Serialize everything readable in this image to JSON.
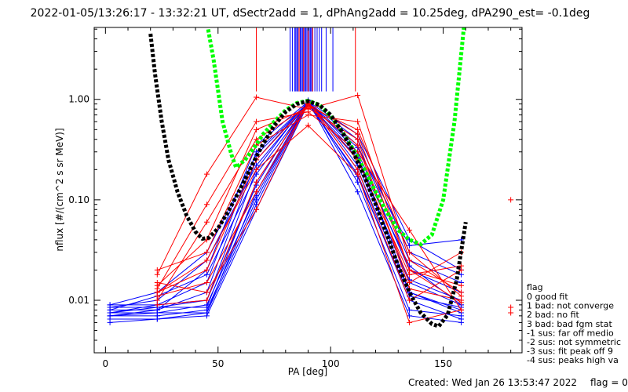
{
  "chart_data": {
    "type": "line",
    "title": "2022-01-05/13:26:17 - 13:32:21 UT, dSectr2add = 1, dPhAng2add = 10.25deg, dPA290_est=  -0.1deg",
    "xlabel": "PA [deg]",
    "ylabel": "nflux [#/(cm^2 s sr MeV)]",
    "xlim": [
      -5,
      185
    ],
    "ylim": [
      0.003,
      5.2
    ],
    "yscale": "log",
    "x_ticks": [
      0,
      50,
      100,
      150
    ],
    "x_tick_labels": [
      "0",
      "50",
      "100",
      "150"
    ],
    "y_ticks": [
      0.01,
      0.1,
      1.0
    ],
    "y_tick_labels": [
      "0.01",
      "0.10",
      "1.00"
    ],
    "pa_bins": [
      2,
      23,
      45,
      67,
      90,
      112,
      135,
      158,
      180
    ],
    "series": [
      {
        "color": "#0000ff",
        "style": "line-with-plus",
        "lines": [
          [
            0.0075,
            0.0075,
            0.0075,
            0.12,
            0.95,
            0.2,
            0.012,
            0.0075
          ],
          [
            0.0085,
            0.0085,
            0.0085,
            0.15,
            0.92,
            0.25,
            0.015,
            0.009
          ],
          [
            0.0065,
            0.0065,
            0.007,
            0.08,
            0.9,
            0.18,
            0.01,
            0.0065
          ],
          [
            0.009,
            0.009,
            0.01,
            0.2,
            0.96,
            0.3,
            0.02,
            0.012
          ],
          [
            0.007,
            0.007,
            0.008,
            0.1,
            0.97,
            0.15,
            0.008,
            0.007
          ],
          [
            0.008,
            0.008,
            0.012,
            0.25,
            0.94,
            0.35,
            0.025,
            0.015
          ],
          [
            0.0075,
            0.009,
            0.015,
            0.3,
            0.93,
            0.4,
            0.03,
            0.018
          ],
          [
            0.007,
            0.008,
            0.02,
            0.35,
            0.95,
            0.45,
            0.04,
            0.02
          ],
          [
            0.0085,
            0.01,
            0.025,
            0.22,
            0.91,
            0.28,
            0.012,
            0.008
          ],
          [
            0.006,
            0.0065,
            0.0075,
            0.09,
            0.96,
            0.12,
            0.007,
            0.006
          ],
          [
            0.009,
            0.012,
            0.03,
            0.28,
            0.92,
            0.33,
            0.035,
            0.04
          ],
          [
            0.0075,
            0.0085,
            0.01,
            0.14,
            0.98,
            0.22,
            0.016,
            0.01
          ],
          [
            0.008,
            0.011,
            0.018,
            0.18,
            0.9,
            0.26,
            0.022,
            0.009
          ],
          [
            0.007,
            0.0075,
            0.009,
            0.11,
            0.95,
            0.17,
            0.011,
            0.0085
          ]
        ]
      },
      {
        "color": "#ff0000",
        "style": "line-with-plus",
        "lines": [
          [
            null,
            0.012,
            0.02,
            0.25,
            0.9,
            0.45,
            0.02,
            0.0095
          ],
          [
            null,
            0.01,
            0.06,
            0.4,
            0.85,
            0.5,
            0.03,
            0.011
          ],
          [
            null,
            0.015,
            0.012,
            0.08,
            0.95,
            0.2,
            0.01,
            0.02
          ],
          [
            null,
            0.013,
            0.09,
            0.6,
            0.75,
            0.3,
            0.05,
            0.008
          ],
          [
            null,
            0.018,
            0.18,
            1.05,
            0.8,
            1.1,
            0.025,
            0.012
          ],
          [
            null,
            0.011,
            0.015,
            0.12,
            0.88,
            0.35,
            0.015,
            0.03
          ],
          [
            null,
            0.02,
            0.03,
            0.35,
            0.7,
            0.6,
            0.02,
            0.014
          ],
          [
            null,
            0.009,
            0.01,
            0.15,
            0.92,
            0.25,
            0.018,
            0.022
          ],
          [
            null,
            0.014,
            0.04,
            0.5,
            0.82,
            0.4,
            0.013,
            0.01
          ],
          [
            null,
            0.012,
            0.025,
            0.2,
            0.55,
            0.18,
            0.006,
            0.008
          ]
        ],
        "isolated_points": [
          {
            "x": 180,
            "y": 0.1
          },
          {
            "x": 180,
            "y": 0.0075
          },
          {
            "x": 180,
            "y": 0.0085
          }
        ]
      },
      {
        "color": "#00ff00",
        "style": "dotted",
        "x": [
          42,
          48,
          52,
          56,
          58,
          62,
          66,
          70,
          75,
          80,
          85,
          90,
          95,
          100,
          105,
          110,
          115,
          120,
          125,
          130,
          135,
          140,
          145,
          150,
          155,
          160
        ],
        "y": [
          14.0,
          2.5,
          0.6,
          0.28,
          0.21,
          0.25,
          0.33,
          0.45,
          0.6,
          0.78,
          0.92,
          0.97,
          0.88,
          0.68,
          0.48,
          0.32,
          0.2,
          0.12,
          0.075,
          0.05,
          0.04,
          0.036,
          0.045,
          0.1,
          0.6,
          8.0
        ]
      },
      {
        "color": "#000000",
        "style": "dotted",
        "x": [
          20,
          22,
          25,
          28,
          32,
          36,
          40,
          43,
          46,
          50,
          55,
          60,
          65,
          70,
          75,
          80,
          85,
          90,
          95,
          100,
          105,
          110,
          115,
          120,
          125,
          130,
          135,
          140,
          145,
          148,
          152,
          156,
          160
        ],
        "y": [
          4.5,
          1.8,
          0.6,
          0.25,
          0.12,
          0.07,
          0.048,
          0.041,
          0.042,
          0.052,
          0.08,
          0.13,
          0.22,
          0.36,
          0.55,
          0.75,
          0.9,
          0.96,
          0.88,
          0.7,
          0.48,
          0.3,
          0.17,
          0.09,
          0.045,
          0.022,
          0.012,
          0.0075,
          0.0058,
          0.0055,
          0.0072,
          0.016,
          0.06
        ]
      }
    ],
    "vertical_markers": {
      "y_from": 1.2,
      "blue_x": [
        82,
        83,
        84,
        84.5,
        85,
        85.5,
        86,
        86.5,
        87,
        87.5,
        88,
        88.5,
        89,
        89.5,
        90,
        90.5,
        91,
        91.5,
        92,
        93,
        94,
        95,
        96,
        98,
        101
      ],
      "red_x": [
        67,
        86,
        88,
        90,
        92,
        111
      ]
    },
    "legend": {
      "placement": "right, outside plot",
      "title": "flag",
      "entries": [
        " 0 good fit",
        " 1 bad: not converge",
        " 2 bad: no fit",
        " 3 bad: bad fgm stat",
        "-1 sus: far off medio",
        "-2 sus: not symmetric",
        "-3 sus: fit peak off 9",
        "-4 sus: peaks high va"
      ]
    },
    "grid": false
  },
  "footer": {
    "created": "Created: Wed Jan 26 13:53:47 2022",
    "flag": "flag = 0"
  }
}
